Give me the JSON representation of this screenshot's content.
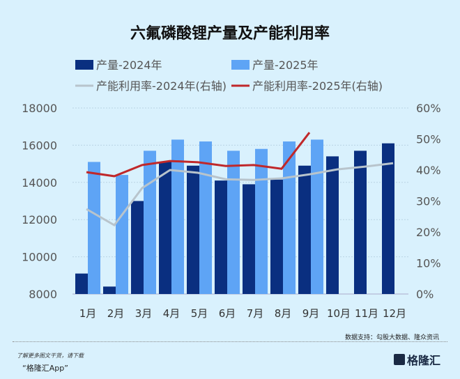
{
  "chart_data": {
    "type": "bar",
    "title": "六氟磷酸锂产量及产能利用率",
    "categories": [
      "1月",
      "2月",
      "3月",
      "4月",
      "5月",
      "6月",
      "7月",
      "8月",
      "9月",
      "10月",
      "11月",
      "12月"
    ],
    "left_axis": {
      "ylim": [
        8000,
        18000
      ],
      "ticks": [
        "8000",
        "10000",
        "12000",
        "14000",
        "16000",
        "18000"
      ]
    },
    "right_axis": {
      "ylim": [
        0,
        60
      ],
      "ticks": [
        "0%",
        "10%",
        "20%",
        "30%",
        "40%",
        "50%",
        "60%"
      ]
    },
    "grid": true,
    "legend_placement": "top",
    "series": [
      {
        "name": "产量-2024年",
        "type": "bar",
        "axis": "left",
        "color": "#0a2f80",
        "values": [
          9100,
          8400,
          13000,
          15100,
          14900,
          14100,
          13900,
          14150,
          14900,
          15400,
          15700,
          16100
        ]
      },
      {
        "name": "产量-2025年",
        "type": "bar",
        "axis": "left",
        "color": "#5ea4f5",
        "values": [
          15100,
          14400,
          15700,
          16300,
          16200,
          15700,
          15800,
          16200,
          16300,
          null,
          null,
          null
        ]
      },
      {
        "name": "产能利用率-2024年(右轴)",
        "type": "line",
        "axis": "right",
        "color": "#b8c4cc",
        "values": [
          27.4,
          22.2,
          34.2,
          40.0,
          39.1,
          37.0,
          36.8,
          37.3,
          38.6,
          40.2,
          41.1,
          42.2
        ]
      },
      {
        "name": "产能利用率-2025年(右轴)",
        "type": "line",
        "axis": "right",
        "color": "#c0282a",
        "values": [
          39.3,
          38.0,
          41.6,
          42.9,
          42.5,
          41.3,
          41.6,
          40.4,
          52.1,
          null,
          null,
          null
        ]
      }
    ]
  },
  "source": "数据支持：勾股大数据、隆众资讯",
  "footer": {
    "line1": "了解更多图文干货，请下载",
    "line2": "“格隆汇App”",
    "logo": "格隆汇"
  }
}
